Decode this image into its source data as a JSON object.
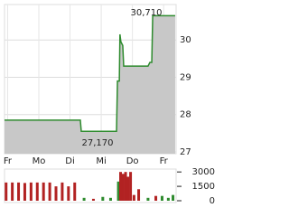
{
  "chart_data": [
    {
      "type": "area",
      "x": [
        -0.1,
        2.33,
        2.36,
        3.49,
        3.52,
        3.58,
        3.6,
        3.63,
        3.69,
        3.72,
        4.5,
        4.56,
        4.62,
        4.65,
        5.37
      ],
      "values": [
        27.85,
        27.85,
        27.55,
        27.55,
        28.9,
        28.9,
        30.15,
        29.95,
        29.85,
        29.3,
        29.3,
        29.4,
        29.4,
        30.65,
        30.65
      ],
      "color": "#2e8b2e",
      "fill": "#c8c8c8",
      "xlim": [
        -0.1,
        5.4
      ],
      "xticks": [
        {
          "value": 0,
          "label": "Fr"
        },
        {
          "value": 1,
          "label": "Mo"
        },
        {
          "value": 2,
          "label": "Di"
        },
        {
          "value": 3,
          "label": "Mi"
        },
        {
          "value": 4,
          "label": "Do"
        },
        {
          "value": 5,
          "label": "Fr"
        }
      ],
      "ylim": [
        26.95,
        30.95
      ],
      "yticks": [
        27,
        28,
        29,
        30
      ],
      "grid": true,
      "annotations": [
        "30,710",
        "27,170"
      ]
    },
    {
      "type": "bar",
      "x": [
        -0.05,
        0.15,
        0.35,
        0.55,
        0.75,
        0.95,
        1.15,
        1.35,
        1.55,
        1.75,
        1.95,
        2.15,
        2.45,
        2.75,
        3.05,
        3.3,
        3.55,
        3.62,
        3.7,
        3.78,
        3.86,
        3.94,
        4.05,
        4.2,
        4.5,
        4.75,
        4.95,
        5.15,
        5.3
      ],
      "values": [
        1900,
        1900,
        1900,
        1850,
        1900,
        1900,
        1900,
        1900,
        1500,
        1900,
        1500,
        1900,
        300,
        200,
        400,
        300,
        2000,
        3000,
        2800,
        3000,
        2500,
        3000,
        600,
        1200,
        300,
        500,
        500,
        300,
        600
      ],
      "colors": [
        "#b22222",
        "#b22222",
        "#b22222",
        "#b22222",
        "#b22222",
        "#b22222",
        "#b22222",
        "#b22222",
        "#b22222",
        "#b22222",
        "#b22222",
        "#b22222",
        "#2e8b2e",
        "#b22222",
        "#2e8b2e",
        "#2e8b2e",
        "#2e8b2e",
        "#b22222",
        "#b22222",
        "#b22222",
        "#b22222",
        "#b22222",
        "#b22222",
        "#b22222",
        "#2e8b2e",
        "#b22222",
        "#2e8b2e",
        "#2e8b2e",
        "#2e8b2e"
      ],
      "xlim": [
        -0.1,
        5.4
      ],
      "ylim": [
        0,
        3300
      ],
      "yticks": [
        0,
        1500,
        3000
      ]
    }
  ]
}
